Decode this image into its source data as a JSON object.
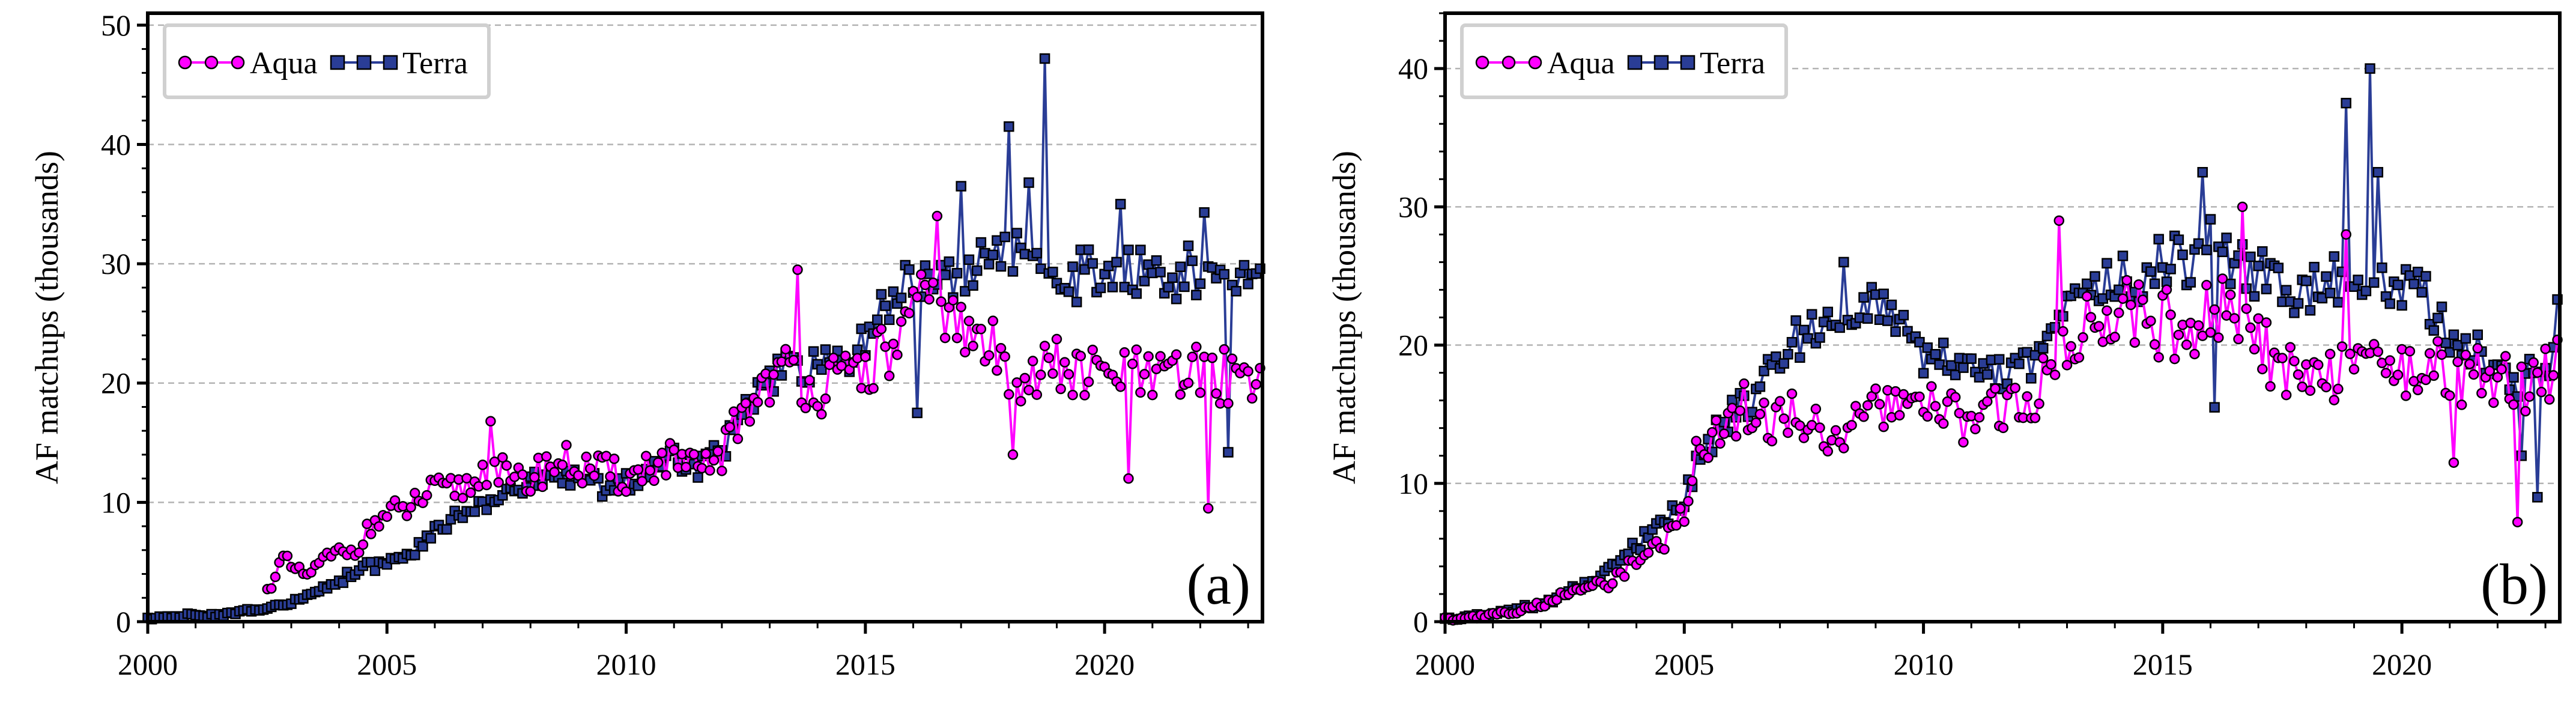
{
  "figure": {
    "description_tags": [
      "a",
      "b"
    ]
  },
  "colors": {
    "aqua": "#ff00ff",
    "terra": "#2a3d96",
    "marker_edge": "#000000",
    "grid": "#b3b3b3"
  },
  "chart_data": [
    {
      "type": "line",
      "panel": "(a)",
      "xlabel": "",
      "ylabel": "AF matchups (thousands)",
      "xlim": [
        2000,
        2023.3
      ],
      "ylim": [
        0,
        51
      ],
      "xticks": [
        2000,
        2005,
        2010,
        2015,
        2020
      ],
      "yticks": [
        0,
        10,
        20,
        30,
        40,
        50
      ],
      "grid": "horizontal dashed",
      "legend": [
        "Aqua",
        "Terra"
      ],
      "legend_position": "top-left",
      "anchors": {
        "Aqua": [
          [
            2002.5,
            2.5
          ],
          [
            2002.8,
            5.2
          ],
          [
            2003.3,
            3.8
          ],
          [
            2003.8,
            5.5
          ],
          [
            2004.3,
            6.0
          ],
          [
            2004.8,
            8.5
          ],
          [
            2005.3,
            9.2
          ],
          [
            2005.8,
            10.5
          ],
          [
            2006.3,
            11.0
          ],
          [
            2006.8,
            11.5
          ],
          [
            2007.2,
            13.5
          ],
          [
            2007.6,
            11.5
          ],
          [
            2008.0,
            12.0
          ],
          [
            2008.5,
            13.5
          ],
          [
            2009.0,
            13.0
          ],
          [
            2009.5,
            12.5
          ],
          [
            2010.0,
            12.0
          ],
          [
            2010.5,
            13.0
          ],
          [
            2011.0,
            13.5
          ],
          [
            2011.5,
            12.5
          ],
          [
            2012.0,
            14.0
          ],
          [
            2012.5,
            18.0
          ],
          [
            2013.0,
            20.5
          ],
          [
            2013.5,
            21.0
          ],
          [
            2014.0,
            19.5
          ],
          [
            2014.5,
            20.0
          ],
          [
            2015.0,
            21.5
          ],
          [
            2015.5,
            22.5
          ],
          [
            2016.0,
            25.5
          ],
          [
            2016.5,
            27.0
          ],
          [
            2017.0,
            24.0
          ],
          [
            2017.5,
            23.5
          ],
          [
            2018.0,
            21.0
          ],
          [
            2018.5,
            20.5
          ],
          [
            2019.0,
            21.5
          ],
          [
            2019.5,
            20.5
          ],
          [
            2020.0,
            20.5
          ],
          [
            2020.5,
            21.0
          ],
          [
            2021.0,
            20.0
          ],
          [
            2021.5,
            20.5
          ],
          [
            2022.0,
            21.0
          ],
          [
            2022.5,
            20.5
          ],
          [
            2023.0,
            21.0
          ]
        ],
        "Terra": [
          [
            2000.0,
            0.2
          ],
          [
            2000.5,
            0.4
          ],
          [
            2001.0,
            0.6
          ],
          [
            2001.5,
            0.5
          ],
          [
            2002.0,
            0.9
          ],
          [
            2002.5,
            1.1
          ],
          [
            2003.0,
            1.6
          ],
          [
            2003.5,
            2.5
          ],
          [
            2004.0,
            3.5
          ],
          [
            2004.5,
            4.5
          ],
          [
            2005.0,
            5.0
          ],
          [
            2005.5,
            5.5
          ],
          [
            2006.0,
            7.5
          ],
          [
            2006.5,
            9.0
          ],
          [
            2007.0,
            10.0
          ],
          [
            2007.5,
            11.0
          ],
          [
            2008.0,
            11.5
          ],
          [
            2008.5,
            12.0
          ],
          [
            2009.0,
            12.0
          ],
          [
            2009.5,
            11.5
          ],
          [
            2010.0,
            11.5
          ],
          [
            2010.5,
            12.5
          ],
          [
            2011.0,
            14.0
          ],
          [
            2011.5,
            13.0
          ],
          [
            2012.0,
            14.5
          ],
          [
            2012.5,
            17.5
          ],
          [
            2013.0,
            20.0
          ],
          [
            2013.5,
            21.5
          ],
          [
            2014.0,
            21.0
          ],
          [
            2014.5,
            21.5
          ],
          [
            2015.0,
            23.5
          ],
          [
            2015.5,
            27.5
          ],
          [
            2016.0,
            28.0
          ],
          [
            2016.5,
            30.5
          ],
          [
            2017.0,
            29.0
          ],
          [
            2017.5,
            29.5
          ],
          [
            2018.0,
            31.5
          ],
          [
            2018.5,
            32.5
          ],
          [
            2019.0,
            29.5
          ],
          [
            2019.5,
            29.0
          ],
          [
            2020.0,
            30.0
          ],
          [
            2020.5,
            29.5
          ],
          [
            2021.0,
            29.5
          ],
          [
            2021.5,
            29.0
          ],
          [
            2022.0,
            29.5
          ],
          [
            2022.5,
            28.5
          ],
          [
            2023.0,
            28.5
          ]
        ]
      },
      "spikes": {
        "Aqua": [
          [
            2007.2,
            16.8
          ],
          [
            2013.6,
            29.5
          ],
          [
            2016.5,
            34.0
          ],
          [
            2018.1,
            14.0
          ],
          [
            2020.5,
            12.0
          ],
          [
            2022.2,
            9.5
          ]
        ],
        "Terra": [
          [
            2016.1,
            17.5
          ],
          [
            2017.0,
            36.5
          ],
          [
            2018.0,
            41.5
          ],
          [
            2018.4,
            36.8
          ],
          [
            2018.75,
            47.2
          ],
          [
            2020.3,
            35.0
          ],
          [
            2022.1,
            34.3
          ],
          [
            2022.6,
            14.2
          ]
        ]
      }
    },
    {
      "type": "line",
      "panel": "(b)",
      "xlabel": "",
      "ylabel": "AF matchups (thousands)",
      "xlim": [
        2000,
        2023.3
      ],
      "ylim": [
        0,
        44
      ],
      "xticks": [
        2000,
        2005,
        2010,
        2015,
        2020
      ],
      "yticks": [
        0,
        10,
        20,
        30,
        40
      ],
      "grid": "horizontal dashed",
      "legend": [
        "Aqua",
        "Terra"
      ],
      "legend_position": "top-left",
      "anchors": {
        "Aqua": [
          [
            2000.0,
            0.2
          ],
          [
            2000.5,
            0.3
          ],
          [
            2001.0,
            0.5
          ],
          [
            2001.5,
            0.8
          ],
          [
            2002.0,
            1.2
          ],
          [
            2002.5,
            2.0
          ],
          [
            2003.0,
            2.5
          ],
          [
            2003.5,
            3.0
          ],
          [
            2004.0,
            4.5
          ],
          [
            2004.5,
            5.5
          ],
          [
            2005.0,
            8.0
          ],
          [
            2005.3,
            12.5
          ],
          [
            2005.8,
            14.5
          ],
          [
            2006.3,
            15.5
          ],
          [
            2006.8,
            14.5
          ],
          [
            2007.3,
            15.0
          ],
          [
            2007.8,
            14.0
          ],
          [
            2008.3,
            13.5
          ],
          [
            2008.8,
            14.5
          ],
          [
            2009.3,
            16.0
          ],
          [
            2009.8,
            15.0
          ],
          [
            2010.3,
            15.5
          ],
          [
            2010.8,
            14.5
          ],
          [
            2011.3,
            15.0
          ],
          [
            2011.8,
            15.5
          ],
          [
            2012.3,
            16.5
          ],
          [
            2012.8,
            18.5
          ],
          [
            2013.3,
            21.0
          ],
          [
            2013.8,
            22.5
          ],
          [
            2014.3,
            23.0
          ],
          [
            2014.8,
            22.0
          ],
          [
            2015.3,
            21.0
          ],
          [
            2015.8,
            21.5
          ],
          [
            2016.3,
            23.0
          ],
          [
            2016.8,
            21.0
          ],
          [
            2017.3,
            19.0
          ],
          [
            2017.8,
            18.0
          ],
          [
            2018.3,
            17.0
          ],
          [
            2018.8,
            19.0
          ],
          [
            2019.3,
            18.5
          ],
          [
            2019.8,
            19.0
          ],
          [
            2020.3,
            18.0
          ],
          [
            2020.8,
            18.5
          ],
          [
            2021.3,
            17.5
          ],
          [
            2021.8,
            18.0
          ],
          [
            2022.3,
            17.0
          ],
          [
            2022.8,
            17.5
          ],
          [
            2023.2,
            18.5
          ]
        ],
        "Terra": [
          [
            2000.0,
            0.2
          ],
          [
            2000.5,
            0.4
          ],
          [
            2001.0,
            0.5
          ],
          [
            2001.5,
            0.9
          ],
          [
            2002.0,
            1.2
          ],
          [
            2002.5,
            2.0
          ],
          [
            2003.0,
            2.8
          ],
          [
            2003.5,
            3.8
          ],
          [
            2004.0,
            5.5
          ],
          [
            2004.5,
            7.0
          ],
          [
            2005.0,
            9.0
          ],
          [
            2005.4,
            12.5
          ],
          [
            2006.0,
            15.0
          ],
          [
            2006.5,
            16.5
          ],
          [
            2007.0,
            19.0
          ],
          [
            2007.5,
            21.0
          ],
          [
            2008.0,
            21.5
          ],
          [
            2008.5,
            22.0
          ],
          [
            2009.0,
            23.0
          ],
          [
            2009.5,
            21.0
          ],
          [
            2010.0,
            19.0
          ],
          [
            2010.5,
            18.5
          ],
          [
            2011.0,
            18.0
          ],
          [
            2011.5,
            17.5
          ],
          [
            2012.0,
            18.5
          ],
          [
            2012.5,
            19.5
          ],
          [
            2013.0,
            22.0
          ],
          [
            2013.5,
            23.5
          ],
          [
            2014.0,
            24.5
          ],
          [
            2014.5,
            25.0
          ],
          [
            2015.0,
            26.0
          ],
          [
            2015.5,
            26.5
          ],
          [
            2016.0,
            27.5
          ],
          [
            2016.5,
            26.0
          ],
          [
            2017.0,
            25.0
          ],
          [
            2017.5,
            24.0
          ],
          [
            2018.0,
            23.5
          ],
          [
            2018.5,
            24.5
          ],
          [
            2019.0,
            26.0
          ],
          [
            2019.5,
            24.5
          ],
          [
            2020.0,
            24.0
          ],
          [
            2020.5,
            23.5
          ],
          [
            2021.0,
            20.5
          ],
          [
            2021.5,
            19.5
          ],
          [
            2022.0,
            18.5
          ],
          [
            2022.5,
            17.5
          ],
          [
            2023.0,
            18.0
          ],
          [
            2023.25,
            20.0
          ]
        ]
      },
      "spikes": {
        "Aqua": [
          [
            2012.8,
            29.0
          ],
          [
            2016.7,
            30.0
          ],
          [
            2018.8,
            28.0
          ],
          [
            2021.1,
            11.5
          ],
          [
            2022.4,
            7.2
          ]
        ],
        "Terra": [
          [
            2008.3,
            26.0
          ],
          [
            2015.8,
            32.5
          ],
          [
            2016.1,
            15.5
          ],
          [
            2018.85,
            37.5
          ],
          [
            2019.3,
            40.0
          ],
          [
            2019.5,
            32.5
          ],
          [
            2022.5,
            12.0
          ],
          [
            2022.8,
            9.0
          ],
          [
            2023.25,
            23.3
          ]
        ]
      }
    }
  ]
}
